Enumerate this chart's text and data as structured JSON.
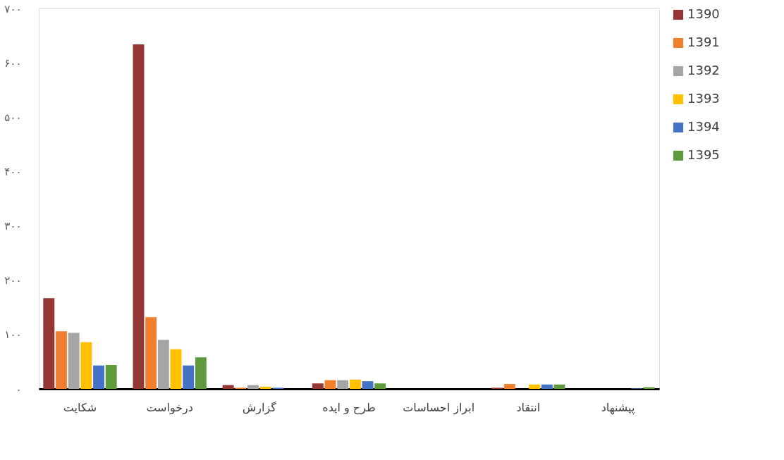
{
  "chart_data": {
    "type": "bar",
    "categories": [
      "شکایت",
      "درخواست",
      "گزارش",
      "طرح و ایده",
      "ابراز احساسات",
      "انتقاد",
      "پیشنهاد"
    ],
    "series": [
      {
        "name": "1390",
        "color": "#943634",
        "values": [
          167,
          634,
          7,
          10,
          0,
          2,
          0
        ]
      },
      {
        "name": "1391",
        "color": "#f07f2e",
        "values": [
          106,
          132,
          2,
          16,
          0,
          9,
          0
        ]
      },
      {
        "name": "1392",
        "color": "#a5a5a5",
        "values": [
          103,
          90,
          7,
          16,
          0,
          null,
          0
        ]
      },
      {
        "name": "1393",
        "color": "#ffc000",
        "values": [
          86,
          73,
          4,
          17,
          0,
          8,
          0
        ]
      },
      {
        "name": "1394",
        "color": "#4472c4",
        "values": [
          43,
          43,
          2,
          14,
          0,
          8,
          1
        ]
      },
      {
        "name": "1395",
        "color": "#5e9a3c",
        "values": [
          44,
          58,
          0,
          10,
          0,
          8,
          3
        ]
      }
    ],
    "ylim": [
      0,
      700
    ],
    "yticks": [
      {
        "value": 0,
        "label": "۰"
      },
      {
        "value": 100,
        "label": "۱۰۰"
      },
      {
        "value": 200,
        "label": "۲۰۰"
      },
      {
        "value": 300,
        "label": "۳۰۰"
      },
      {
        "value": 400,
        "label": "۴۰۰"
      },
      {
        "value": 500,
        "label": "۵۰۰"
      },
      {
        "value": 600,
        "label": "۶۰۰"
      },
      {
        "value": 700,
        "label": "۷۰۰"
      }
    ],
    "grid": false,
    "legend": "right"
  }
}
